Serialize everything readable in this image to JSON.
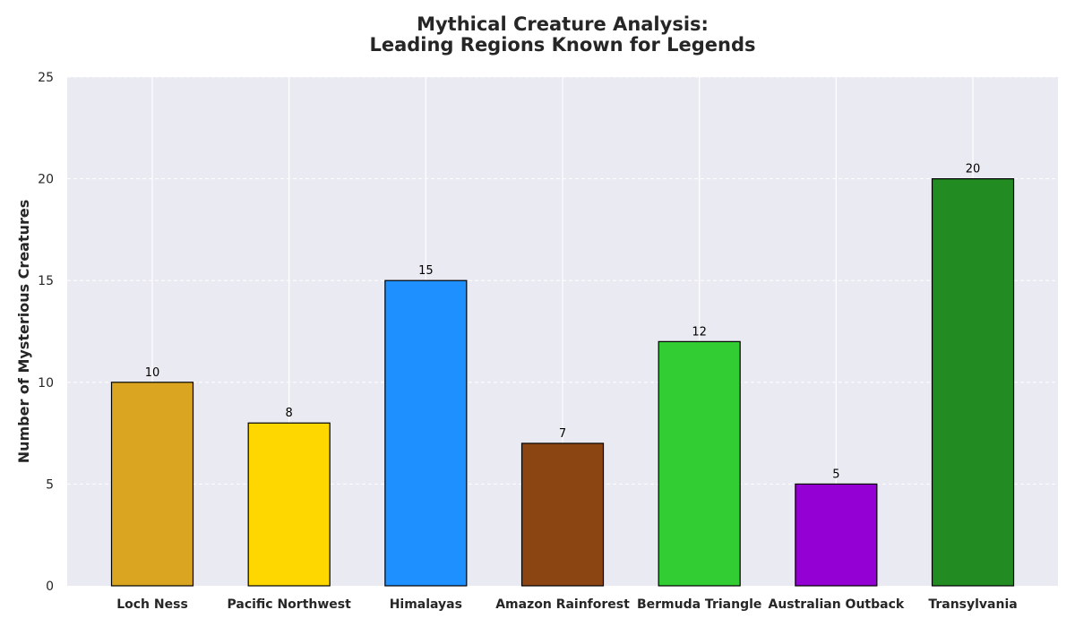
{
  "chart_data": {
    "type": "bar",
    "title_lines": [
      "Mythical Creature Analysis:",
      "Leading Regions Known for Legends"
    ],
    "xlabel": "",
    "ylabel": "Number of Mysterious Creatures",
    "ylim": [
      0,
      25
    ],
    "yticks": [
      0,
      5,
      10,
      15,
      20,
      25
    ],
    "grid": true,
    "categories": [
      "Loch Ness",
      "Pacific Northwest",
      "Himalayas",
      "Amazon Rainforest",
      "Bermuda Triangle",
      "Australian Outback",
      "Transylvania"
    ],
    "values": [
      10,
      8,
      15,
      7,
      12,
      5,
      20
    ],
    "bar_colors": [
      "#DAA520",
      "#FFD700",
      "#1E90FF",
      "#8B4513",
      "#32CD32",
      "#9400D3",
      "#228B22"
    ],
    "bar_edge_color": "#000000",
    "plot_background": "#EAEAF2",
    "grid_color": "#FFFFFF"
  }
}
